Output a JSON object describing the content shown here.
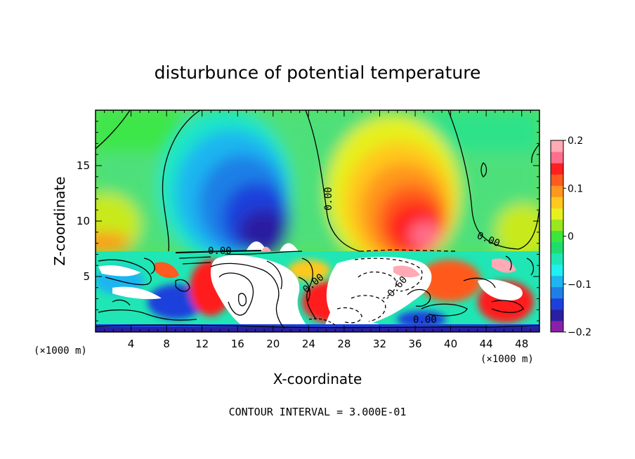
{
  "chart_data": {
    "type": "heatmap",
    "title": "disturbunce of potential temperature",
    "xlabel": "X-coordinate",
    "ylabel": "Z-coordinate",
    "x_unit_left": "(×1000 m)",
    "x_unit_right": "(×1000 m)",
    "xlim": [
      0,
      50
    ],
    "ylim": [
      0,
      20
    ],
    "x_ticks": [
      "4",
      "8",
      "12",
      "16",
      "20",
      "24",
      "28",
      "32",
      "36",
      "40",
      "44",
      "48"
    ],
    "y_ticks": [
      "5",
      "10",
      "15"
    ],
    "colorbar": {
      "range": [
        -0.2,
        0.2
      ],
      "tick_labels": [
        "0.2",
        "0.1",
        "0",
        "−0.1",
        "−0.2"
      ],
      "colors": [
        "#8a1fa8",
        "#2a1fa0",
        "#1f3fdc",
        "#1f7fe6",
        "#1fb5f0",
        "#1ff0f0",
        "#1fe6b4",
        "#1fdc6e",
        "#3ce63c",
        "#9ae61f",
        "#e6f01f",
        "#ffc81f",
        "#ff961f",
        "#ff5a1f",
        "#ff1f1f",
        "#ff6e8c",
        "#ffaab4"
      ]
    },
    "contour_labels": [
      {
        "text": "0.00",
        "x": 26.5,
        "z": 11.6
      },
      {
        "text": "0.00",
        "x": 14.2,
        "z": 7.2
      },
      {
        "text": "0.00",
        "x": 44.5,
        "z": 8.2
      },
      {
        "text": "0.00",
        "x": 25.2,
        "z": 4.5
      },
      {
        "text": "0.00",
        "x": 37.5,
        "z": 1.3
      },
      {
        "text": "-0.60",
        "x": 34.8,
        "z": 5.0
      }
    ],
    "contour_interval_text": "CONTOUR INTERVAL = 3.000E-01"
  }
}
